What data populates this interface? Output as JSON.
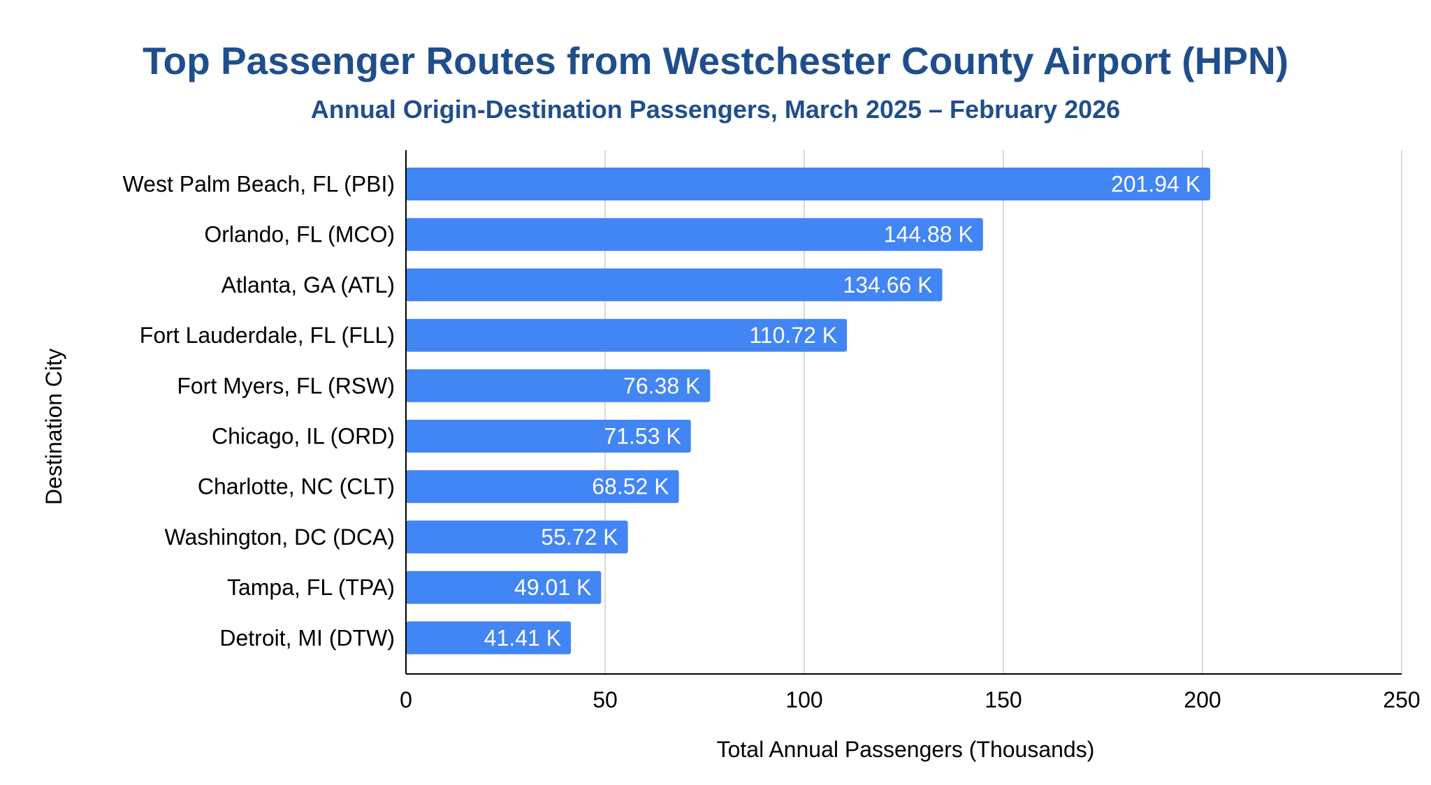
{
  "chart_data": {
    "type": "bar",
    "orientation": "horizontal",
    "title": "Top Passenger Routes from Westchester County Airport (HPN)",
    "subtitle": "Annual Origin-Destination Passengers, March 2025 – February 2026",
    "xlabel": "Total Annual Passengers (Thousands)",
    "ylabel": "Destination City",
    "xlim": [
      0,
      250
    ],
    "xticks": [
      0,
      50,
      100,
      150,
      200,
      250
    ],
    "grid": true,
    "legend": "none",
    "categories": [
      "West Palm Beach, FL (PBI)",
      "Orlando, FL (MCO)",
      "Atlanta, GA (ATL)",
      "Fort Lauderdale, FL (FLL)",
      "Fort Myers, FL (RSW)",
      "Chicago, IL (ORD)",
      "Charlotte, NC (CLT)",
      "Washington, DC (DCA)",
      "Tampa, FL (TPA)",
      "Detroit, MI (DTW)"
    ],
    "values": [
      201.94,
      144.88,
      134.66,
      110.72,
      76.38,
      71.53,
      68.52,
      55.72,
      49.01,
      41.41
    ],
    "data_labels": [
      "201.94 K",
      "144.88 K",
      "134.66 K",
      "110.72 K",
      "76.38 K",
      "71.53 K",
      "68.52 K",
      "55.72 K",
      "49.01 K",
      "41.41 K"
    ],
    "colors": {
      "bar": "#4285f4",
      "title": "#1f4e8c",
      "gridline": "#cccccc",
      "axis": "#000000",
      "data_label": "#ffffff"
    }
  }
}
